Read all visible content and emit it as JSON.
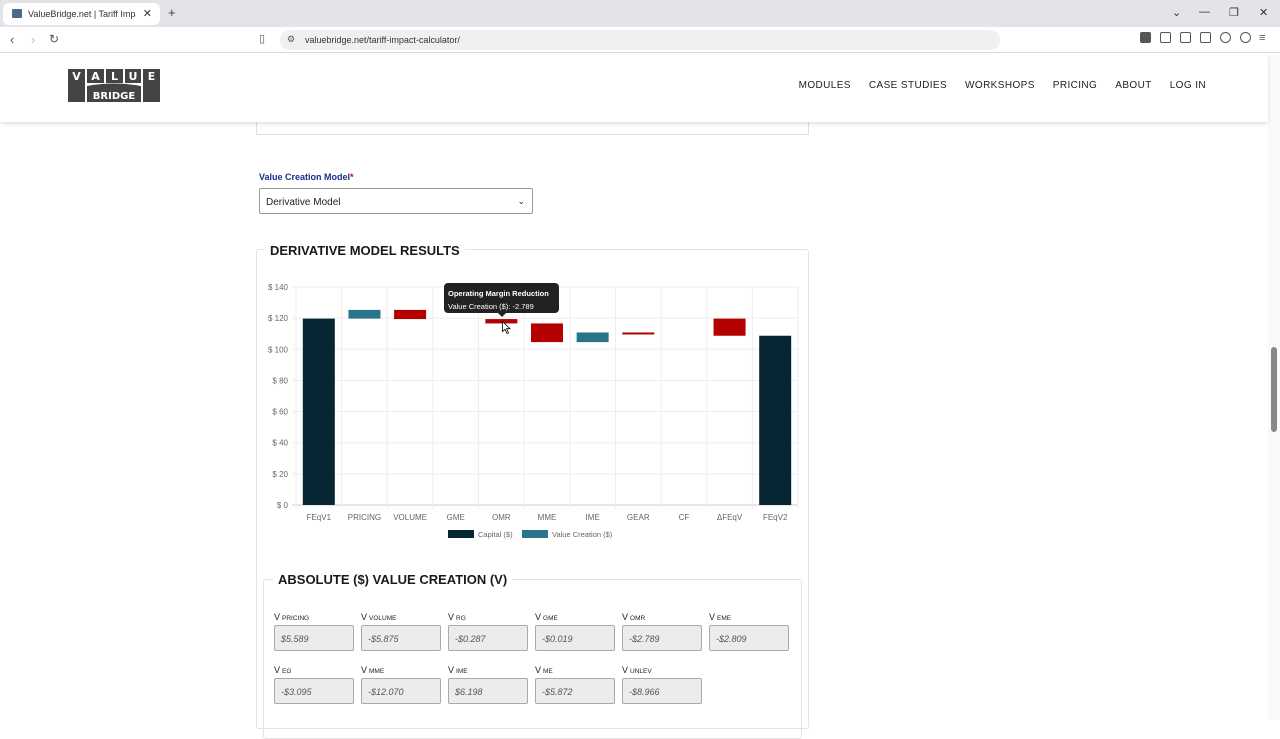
{
  "browser": {
    "tab_title": "ValueBridge.net | Tariff Impact C",
    "url": "valuebridge.net/tariff-impact-calculator/"
  },
  "site": {
    "logo_top": "VALUE",
    "logo_bottom": "BRIDGE",
    "menu": [
      "MODULES",
      "CASE STUDIES",
      "WORKSHOPS",
      "PRICING",
      "ABOUT",
      "LOG IN"
    ]
  },
  "form": {
    "model_label": "Value Creation Model",
    "required_mark": "*",
    "model_value": "Derivative Model"
  },
  "results": {
    "title": "DERIVATIVE MODEL RESULTS"
  },
  "tooltip": {
    "title": "Operating Margin Reduction",
    "body": "Value Creation ($): -2.789"
  },
  "chart_data": {
    "type": "bar",
    "subtype": "waterfall",
    "categories": [
      "FEqV1",
      "PRICING",
      "VOLUME",
      "GME",
      "OMR",
      "MME",
      "IME",
      "GEAR",
      "CF",
      "ΔFEqV",
      "FEqV2"
    ],
    "ranges": [
      [
        0,
        119.7
      ],
      [
        119.7,
        125.3
      ],
      [
        119.4,
        125.3
      ],
      [
        119.4,
        119.4
      ],
      [
        116.6,
        119.4
      ],
      [
        104.6,
        116.6
      ],
      [
        104.6,
        110.8
      ],
      [
        109.8,
        110.8
      ],
      [
        109.8,
        109.8
      ],
      [
        108.7,
        119.7
      ],
      [
        0,
        108.7
      ]
    ],
    "kinds": [
      "capital",
      "up",
      "down",
      "down",
      "down",
      "down",
      "up",
      "down",
      "down",
      "down",
      "capital"
    ],
    "yticks": [
      "$ 0",
      "$ 20",
      "$ 40",
      "$ 60",
      "$ 80",
      "$ 100",
      "$ 120",
      "$ 140"
    ],
    "ylim": [
      0,
      140
    ],
    "legend": [
      "Capital ($)",
      "Value Creation ($)"
    ],
    "colors": {
      "capital": "#062633",
      "up": "#2a7489",
      "down": "#b30000"
    }
  },
  "absolute": {
    "title": "ABSOLUTE ($) VALUE CREATION (V)",
    "cells": [
      {
        "v": "V",
        "sub": "PRICING",
        "val": "$5.589"
      },
      {
        "v": "V",
        "sub": "VOLUME",
        "val": "-$5.875"
      },
      {
        "v": "V",
        "sub": "RG",
        "val": "-$0.287"
      },
      {
        "v": "V",
        "sub": "GME",
        "val": "-$0.019"
      },
      {
        "v": "V",
        "sub": "OMR",
        "val": "-$2.789"
      },
      {
        "v": "V",
        "sub": "EME",
        "val": "-$2.809"
      },
      {
        "v": "V",
        "sub": "EG",
        "val": "-$3.095"
      },
      {
        "v": "V",
        "sub": "MME",
        "val": "-$12.070"
      },
      {
        "v": "V",
        "sub": "IME",
        "val": "$6.198"
      },
      {
        "v": "V",
        "sub": "ME",
        "val": "-$5.872"
      },
      {
        "v": "V",
        "sub": "UNLEV",
        "val": "-$8.966"
      }
    ]
  }
}
